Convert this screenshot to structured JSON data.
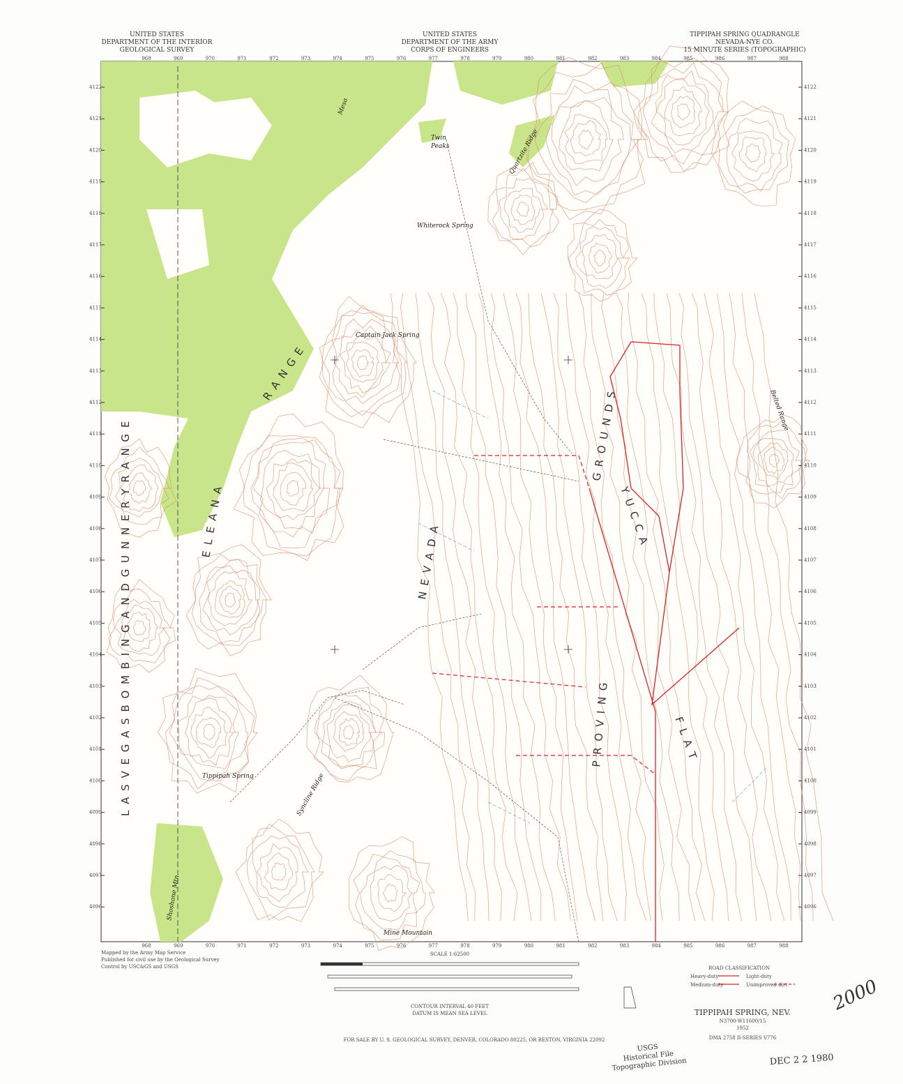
{
  "header": {
    "left": [
      "UNITED STATES",
      "DEPARTMENT OF THE INTERIOR",
      "GEOLOGICAL SURVEY"
    ],
    "center": [
      "UNITED STATES",
      "DEPARTMENT OF THE ARMY",
      "CORPS OF ENGINEERS"
    ],
    "right": [
      "TIPPIPAH SPRING QUADRANGLE",
      "NEVADA-NYE CO.",
      "15 MINUTE SERIES (TOPOGRAPHIC)"
    ]
  },
  "northing_labels": [
    "4122",
    "4121",
    "4120",
    "4119",
    "4118",
    "4117",
    "4116",
    "4115",
    "4114",
    "4113",
    "4112",
    "4111",
    "4110",
    "4109",
    "4108",
    "4107",
    "4106",
    "4105",
    "4104",
    "4103",
    "4102",
    "4101",
    "4100",
    "4099",
    "4098",
    "4097",
    "4096"
  ],
  "easting_labels": [
    "968",
    "969",
    "970",
    "971",
    "972",
    "973",
    "974",
    "975",
    "976",
    "977",
    "978",
    "979",
    "980",
    "981",
    "982",
    "983",
    "984",
    "985",
    "986",
    "987",
    "988"
  ],
  "places": {
    "mesa": "Mesa",
    "twin": "Twin",
    "peaks": "Peaks",
    "quartzite": "Quartzite Ridge",
    "whiterock": "Whiterock Spring",
    "captain_jack": "Captain Jack Spring",
    "syncline": "Syncline Ridge",
    "tippipah": "Tippipah Spring",
    "mine_mountain": "Mine Mountain",
    "shoshone": "Shoshone Mtn",
    "belted": "Belted Range"
  },
  "regions": {
    "nevada": "N E V A D A",
    "proving": "P R O V I N G",
    "grounds": "G R O U N D S",
    "yucca": "Y U C C A",
    "flat": "F L A T",
    "eleana": "E L E A N A",
    "range1": "R A N G E",
    "gunnery": "L A S   V E G A S   B O M B I N G   A N D   G U N N E R Y   R A N G E"
  },
  "footer": {
    "credits": [
      "Mapped by the Army Map Service",
      "Published for civil use by the Geological Survey",
      "Control by USC&GS and USGS"
    ],
    "scale": "SCALE 1:62500",
    "contour": "CONTOUR INTERVAL 40 FEET",
    "datum": "DATUM IS MEAN SEA LEVEL",
    "sale": "FOR SALE BY U. S. GEOLOGICAL SURVEY, DENVER, COLORADO 80225, OR RESTON, VIRGINIA 22092",
    "road_title": "ROAD CLASSIFICATION",
    "roads": [
      "Heavy-duty",
      "Light-duty",
      "Medium-duty",
      "Unimproved dirt"
    ],
    "quad_name": "TIPPIPAH SPRING, NEV.",
    "quad_code": "N3700-W11600/15",
    "year": "1952",
    "series": "DMA 2758 II-SERIES V776",
    "stamp": [
      "USGS",
      "Historical File",
      "Topographic Division"
    ],
    "date_stamp": "DEC 2 2 1980",
    "handwriting": "2000"
  }
}
